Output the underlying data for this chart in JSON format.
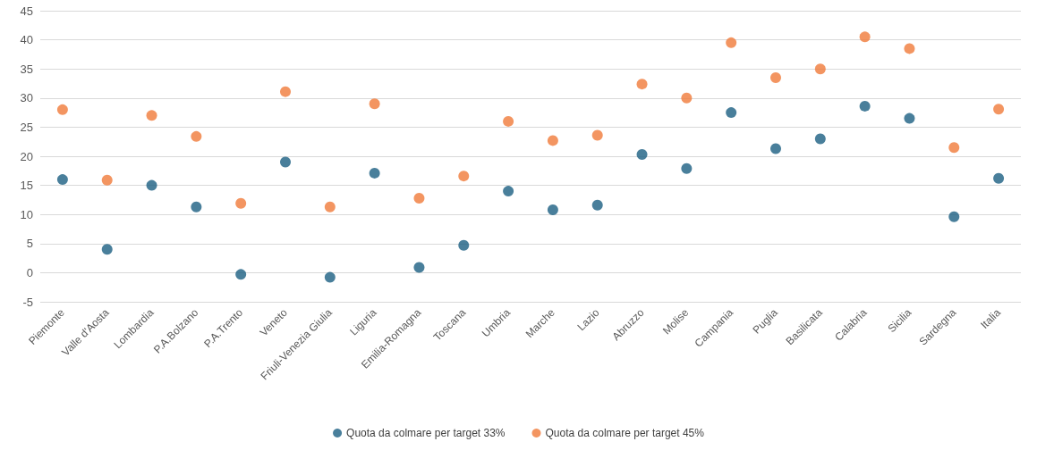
{
  "chart_data": {
    "type": "scatter",
    "categories": [
      "Piemonte",
      "Valle d'Aosta",
      "Lombardia",
      "P.A.Bolzano",
      "P.A.Trento",
      "Veneto",
      "Friuli-Venezia Giulia",
      "Liguria",
      "Emilia-Romagna",
      "Toscana",
      "Umbria",
      "Marche",
      "Lazio",
      "Abruzzo",
      "Molise",
      "Campania",
      "Puglia",
      "Basilicata",
      "Calabria",
      "Sicilia",
      "Sardegna",
      "Italia"
    ],
    "series": [
      {
        "name": "Quota da colmare per target 33%",
        "color": "#1b5f82",
        "values": [
          16,
          4,
          15,
          11.3,
          -0.3,
          19,
          -0.8,
          17.1,
          0.9,
          4.7,
          14,
          10.8,
          11.6,
          20.3,
          17.9,
          27.5,
          21.3,
          23,
          28.6,
          26.5,
          9.6,
          16.2
        ]
      },
      {
        "name": "Quota da colmare per target 45%",
        "color": "#f07a3a",
        "values": [
          28,
          15.9,
          27,
          23.4,
          11.9,
          31.1,
          11.3,
          29,
          12.8,
          16.6,
          26,
          22.7,
          23.6,
          32.4,
          30,
          39.5,
          33.5,
          35,
          40.5,
          38.5,
          21.5,
          28.1
        ]
      }
    ],
    "ylim": [
      -5,
      45
    ],
    "yticks": [
      -5,
      0,
      5,
      10,
      15,
      20,
      25,
      30,
      35,
      40,
      45
    ],
    "grid": "y",
    "legend": "bottom",
    "marker": "circle"
  }
}
